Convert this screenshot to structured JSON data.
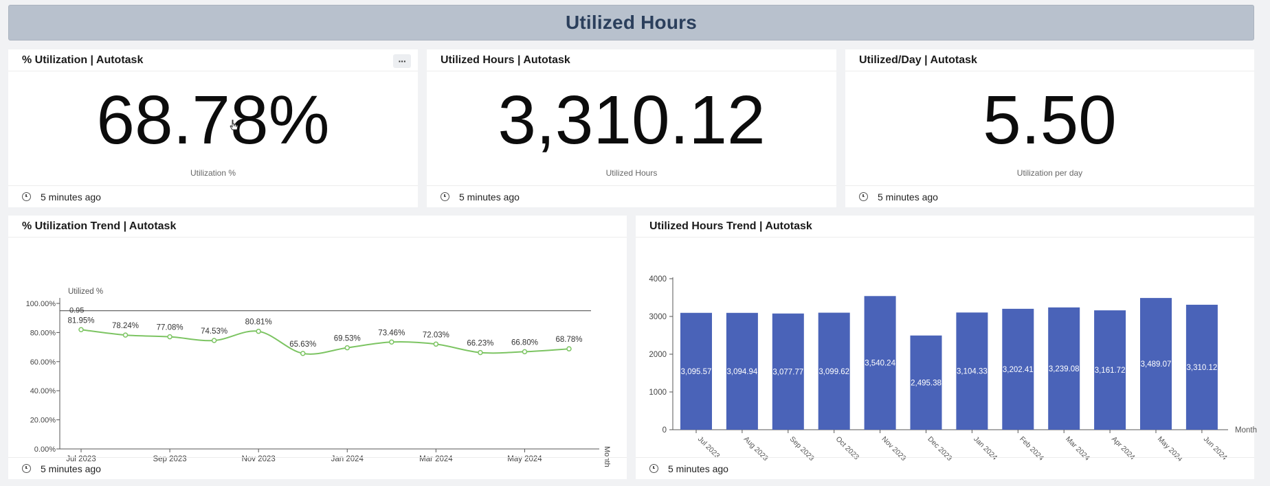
{
  "banner": {
    "title": "Utilized Hours"
  },
  "kpis": [
    {
      "title": "% Utilization | Autotask",
      "value": "68.78%",
      "label": "Utilization %",
      "updated": "5 minutes ago",
      "more_label": "···"
    },
    {
      "title": "Utilized Hours | Autotask",
      "value": "3,310.12",
      "label": "Utilized Hours",
      "updated": "5 minutes ago"
    },
    {
      "title": "Utilized/Day | Autotask",
      "value": "5.50",
      "label": "Utilization per day",
      "updated": "5 minutes ago"
    }
  ],
  "trend": {
    "title": "% Utilization Trend | Autotask",
    "updated": "5 minutes ago"
  },
  "hours_trend": {
    "title": "Utilized Hours Trend | Autotask",
    "updated": "5 minutes ago"
  },
  "chart_data": [
    {
      "type": "line",
      "ylabel": "Utilized %",
      "xlabel": "Month",
      "x": [
        "Jul 2023",
        "Aug 2023",
        "Sep 2023",
        "Oct 2023",
        "Nov 2023",
        "Dec 2023",
        "Jan 2024",
        "Feb 2024",
        "Mar 2024",
        "Apr 2024",
        "May 2024",
        "Jun 2024"
      ],
      "xticks": [
        "Jul 2023",
        "Sep 2023",
        "Nov 2023",
        "Jan 2024",
        "Mar 2024",
        "May 2024"
      ],
      "values": [
        81.95,
        78.24,
        77.08,
        74.53,
        80.81,
        65.63,
        69.53,
        73.46,
        72.03,
        66.23,
        66.8,
        68.78
      ],
      "data_labels": [
        "81.95%",
        "78.24%",
        "77.08%",
        "74.53%",
        "80.81%",
        "65.63%",
        "69.53%",
        "73.46%",
        "72.03%",
        "66.23%",
        "66.80%",
        "68.78%"
      ],
      "ylim": [
        0,
        100
      ],
      "yticks": [
        "0.00%",
        "20.00%",
        "40.00%",
        "60.00%",
        "80.00%",
        "100.00%"
      ],
      "reference_line": {
        "value": 95,
        "label": "0.95"
      },
      "color": "#7cc462",
      "grid": false
    },
    {
      "type": "bar",
      "xlabel": "Month",
      "categories": [
        "Jul 2023",
        "Aug 2023",
        "Sep 2023",
        "Oct 2023",
        "Nov 2023",
        "Dec 2023",
        "Jan 2024",
        "Feb 2024",
        "Mar 2024",
        "Apr 2024",
        "May 2024",
        "Jun 2024"
      ],
      "values": [
        3095.57,
        3094.94,
        3077.77,
        3099.62,
        3540.24,
        2495.38,
        3104.33,
        3202.41,
        3239.08,
        3161.72,
        3489.07,
        3310.12
      ],
      "data_labels": [
        "3,095.57",
        "3,094.94",
        "3,077.77",
        "3,099.62",
        "3,540.24",
        "2,495.38",
        "3,104.33",
        "3,202.41",
        "3,239.08",
        "3,161.72",
        "3,489.07",
        "3,310.12"
      ],
      "ylim": [
        0,
        4000
      ],
      "yticks": [
        "0",
        "1000",
        "2000",
        "3000",
        "4000"
      ],
      "color": "#4a63b8",
      "grid": false
    }
  ]
}
